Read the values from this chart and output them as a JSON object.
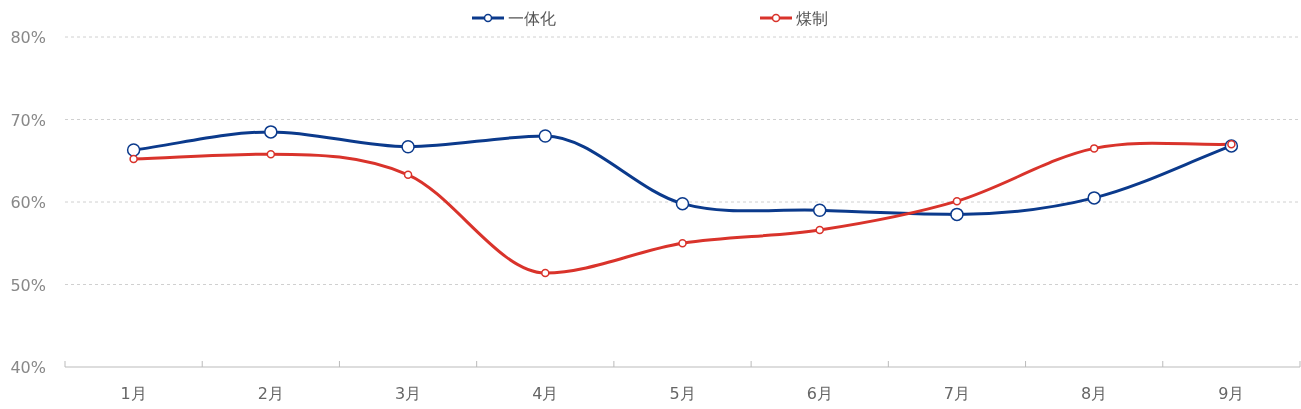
{
  "chart_data": {
    "type": "line",
    "categories": [
      "1月",
      "2月",
      "3月",
      "4月",
      "5月",
      "6月",
      "7月",
      "8月",
      "9月"
    ],
    "series": [
      {
        "name": "一体化",
        "color": "#0b3a8c",
        "values": [
          66.3,
          68.5,
          66.7,
          68.0,
          59.8,
          59.0,
          58.5,
          60.5,
          66.8
        ]
      },
      {
        "name": "煤制",
        "color": "#d9332b",
        "values": [
          65.2,
          65.8,
          63.3,
          51.4,
          55.0,
          56.6,
          60.1,
          66.5,
          67.0
        ]
      }
    ],
    "ylim": [
      40,
      80
    ],
    "yticks": [
      {
        "value": 40,
        "label": "40%"
      },
      {
        "value": 50,
        "label": "50%"
      },
      {
        "value": 60,
        "label": "60%"
      },
      {
        "value": 70,
        "label": "70%"
      },
      {
        "value": 80,
        "label": "80%"
      }
    ],
    "grid": "y",
    "legend": "top",
    "marker": "circle",
    "line_style": "solid"
  }
}
